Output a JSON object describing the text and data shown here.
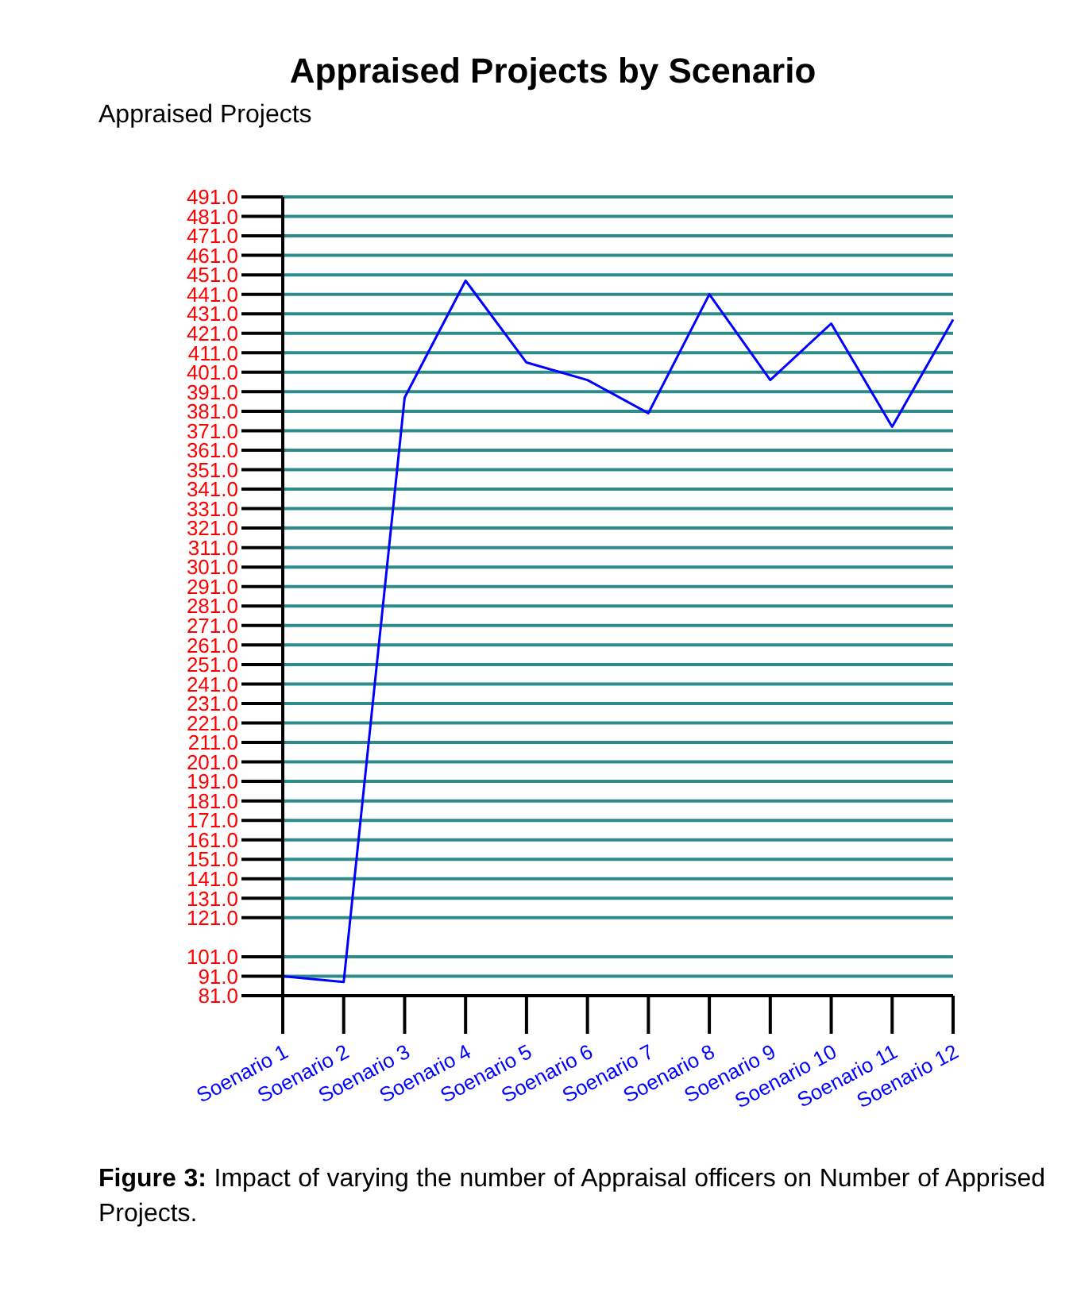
{
  "chart_data": {
    "type": "line",
    "title": "Appraised Projects by Scenario",
    "ylabel": "Appraised Projects",
    "categories": [
      "Soenario 1",
      "Soenario 2",
      "Soenario 3",
      "Soenario 4",
      "Soenario 5",
      "Soenario 6",
      "Soenario 7",
      "Soenario 8",
      "Soenario 9",
      "Soenario 10",
      "Soenario 11",
      "Soenario 12"
    ],
    "series": [
      {
        "color": "#0000ff",
        "values": [
          91,
          88,
          388,
          448,
          406,
          397,
          380,
          441,
          397,
          426,
          373,
          428
        ]
      }
    ],
    "ylim": [
      81,
      491
    ],
    "yticks": [
      {
        "value": 81,
        "label": "81.0"
      },
      {
        "value": 91,
        "label": "91.0"
      },
      {
        "value": 101,
        "label": "101.0"
      },
      {
        "value": 121,
        "label": "121.0"
      },
      {
        "value": 131,
        "label": "131.0"
      },
      {
        "value": 141,
        "label": "141.0"
      },
      {
        "value": 151,
        "label": "151.0"
      },
      {
        "value": 161,
        "label": "161.0"
      },
      {
        "value": 171,
        "label": "171.0"
      },
      {
        "value": 181,
        "label": "181.0"
      },
      {
        "value": 191,
        "label": "191.0"
      },
      {
        "value": 201,
        "label": "201.0"
      },
      {
        "value": 211,
        "label": "211.0"
      },
      {
        "value": 221,
        "label": "221.0"
      },
      {
        "value": 231,
        "label": "231.0"
      },
      {
        "value": 241,
        "label": "241.0"
      },
      {
        "value": 251,
        "label": "251.0"
      },
      {
        "value": 261,
        "label": "261.0"
      },
      {
        "value": 271,
        "label": "271.0"
      },
      {
        "value": 281,
        "label": "281.0"
      },
      {
        "value": 291,
        "label": "291.0"
      },
      {
        "value": 301,
        "label": "301.0"
      },
      {
        "value": 311,
        "label": "311.0"
      },
      {
        "value": 321,
        "label": "321.0"
      },
      {
        "value": 331,
        "label": "331.0"
      },
      {
        "value": 341,
        "label": "341.0"
      },
      {
        "value": 351,
        "label": "351.0"
      },
      {
        "value": 361,
        "label": "361.0"
      },
      {
        "value": 371,
        "label": "371.0"
      },
      {
        "value": 381,
        "label": "381.0"
      },
      {
        "value": 391,
        "label": "391.0"
      },
      {
        "value": 401,
        "label": "401.0"
      },
      {
        "value": 411,
        "label": "411.0"
      },
      {
        "value": 421,
        "label": "421.0"
      },
      {
        "value": 431,
        "label": "431.0"
      },
      {
        "value": 441,
        "label": "441.0"
      },
      {
        "value": 451,
        "label": "451.0"
      },
      {
        "value": 461,
        "label": "461.0"
      },
      {
        "value": 471,
        "label": "471.0"
      },
      {
        "value": 481,
        "label": "481.0"
      },
      {
        "value": 491,
        "label": "491.0"
      }
    ],
    "grid": "y",
    "marker": "none",
    "line_style": "solid",
    "annotations": [
      "Figure 3: Impact of varying the number of Appraisal officers on Number of Apprised Projects."
    ]
  }
}
